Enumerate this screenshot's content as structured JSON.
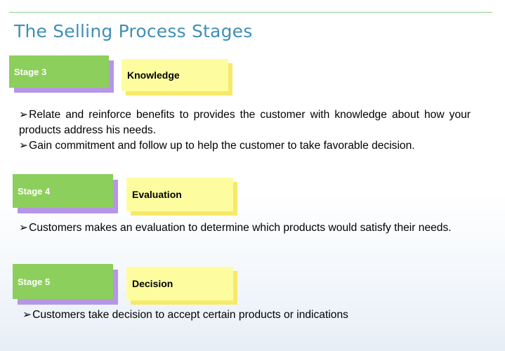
{
  "title": "The Selling Process Stages",
  "stages": [
    {
      "label": "Stage 3",
      "name": "Knowledge",
      "points": [
        "Relate and reinforce benefits to provides the customer with knowledge about how your products address his needs.",
        "Gain commitment and follow up to help the customer to take favorable decision."
      ]
    },
    {
      "label": "Stage  4",
      "name": "Evaluation",
      "points": [
        "Customers makes an evaluation to determine which products would satisfy their needs."
      ]
    },
    {
      "label": "Stage  5",
      "name": "Decision",
      "points": [
        "Customers take decision to accept certain products or indications"
      ]
    }
  ],
  "bullet_glyph": "➢",
  "colors": {
    "title": "#3f8fb7",
    "stage_box": "#8ccf5c",
    "stage_shadow": "#b696e6",
    "name_box": "#fdfda0",
    "name_shadow": "#f7e96a"
  }
}
